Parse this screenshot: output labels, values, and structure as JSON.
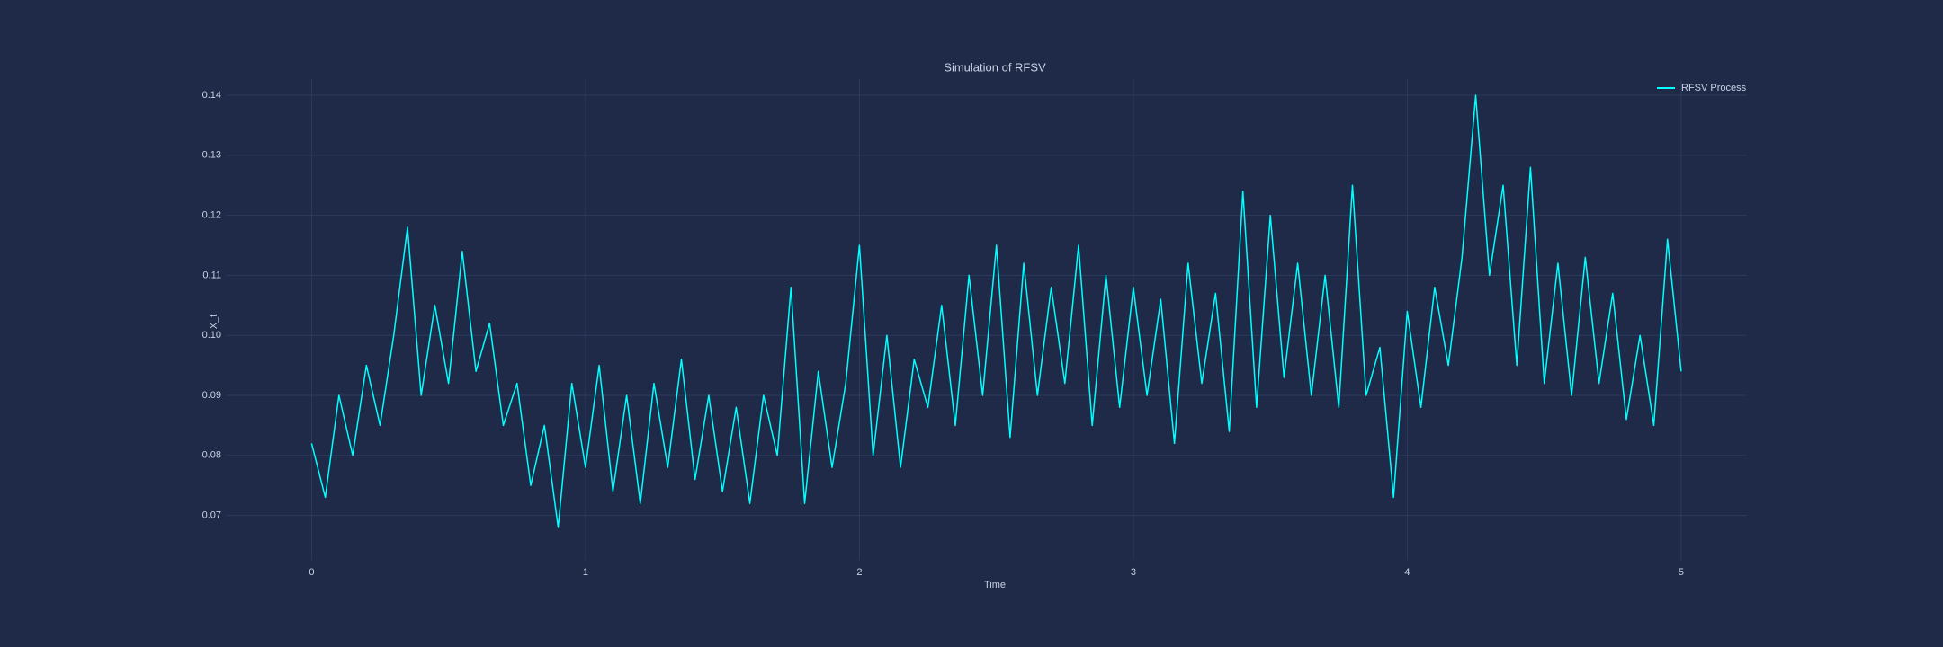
{
  "chart_data": {
    "type": "line",
    "title": "Simulation of RFSV",
    "x_label": "Time",
    "y_label": "X_t",
    "x": [
      0,
      0.05,
      0.1,
      0.15,
      0.2,
      0.25,
      0.3,
      0.35,
      0.4,
      0.45,
      0.5,
      0.55,
      0.6,
      0.65,
      0.7,
      0.75,
      0.8,
      0.85,
      0.9,
      0.95,
      1,
      1.05,
      1.1,
      1.15,
      1.2,
      1.25,
      1.3,
      1.35,
      1.4,
      1.45,
      1.5,
      1.55,
      1.6,
      1.65,
      1.7,
      1.75,
      1.8,
      1.85,
      1.9,
      1.95,
      2,
      2.05,
      2.1,
      2.15,
      2.2,
      2.25,
      2.3,
      2.35,
      2.4,
      2.45,
      2.5,
      2.55,
      2.6,
      2.65,
      2.7,
      2.75,
      2.8,
      2.85,
      2.9,
      2.95,
      3,
      3.05,
      3.1,
      3.15,
      3.2,
      3.25,
      3.3,
      3.35,
      3.4,
      3.45,
      3.5,
      3.55,
      3.6,
      3.65,
      3.7,
      3.75,
      3.8,
      3.85,
      3.9,
      3.95,
      4,
      4.05,
      4.1,
      4.15,
      4.2,
      4.25,
      4.3,
      4.35,
      4.4,
      4.45,
      4.5,
      4.55,
      4.6,
      4.65,
      4.7,
      4.75,
      4.8,
      4.85,
      4.9,
      4.95,
      5
    ],
    "series": [
      {
        "name": "RFSV Process",
        "color": "#00ffff",
        "values": [
          0.082,
          0.073,
          0.09,
          0.08,
          0.095,
          0.085,
          0.1,
          0.118,
          0.09,
          0.105,
          0.092,
          0.114,
          0.094,
          0.102,
          0.085,
          0.092,
          0.075,
          0.085,
          0.068,
          0.092,
          0.078,
          0.095,
          0.074,
          0.09,
          0.072,
          0.092,
          0.078,
          0.096,
          0.076,
          0.09,
          0.074,
          0.088,
          0.072,
          0.09,
          0.08,
          0.108,
          0.072,
          0.094,
          0.078,
          0.092,
          0.115,
          0.08,
          0.1,
          0.078,
          0.096,
          0.088,
          0.105,
          0.085,
          0.11,
          0.09,
          0.115,
          0.083,
          0.112,
          0.09,
          0.108,
          0.092,
          0.115,
          0.085,
          0.11,
          0.088,
          0.108,
          0.09,
          0.106,
          0.082,
          0.112,
          0.092,
          0.107,
          0.084,
          0.124,
          0.088,
          0.12,
          0.093,
          0.112,
          0.09,
          0.11,
          0.088,
          0.125,
          0.09,
          0.098,
          0.073,
          0.104,
          0.088,
          0.108,
          0.095,
          0.113,
          0.14,
          0.11,
          0.125,
          0.095,
          0.128,
          0.092,
          0.112,
          0.09,
          0.113,
          0.092,
          0.107,
          0.086,
          0.1,
          0.085,
          0.116,
          0.094
        ]
      }
    ],
    "xlim": [
      -0.31,
      5.24
    ],
    "xticks": [
      0,
      1,
      2,
      3,
      4,
      5
    ],
    "ylim": [
      0.0626,
      0.1427
    ],
    "yticks": [
      0.07,
      0.08,
      0.09,
      {
        "value": 0.1,
        "label": "0.10"
      },
      0.11,
      0.12,
      0.13,
      0.14
    ],
    "grid": true,
    "legend": "upper right"
  }
}
